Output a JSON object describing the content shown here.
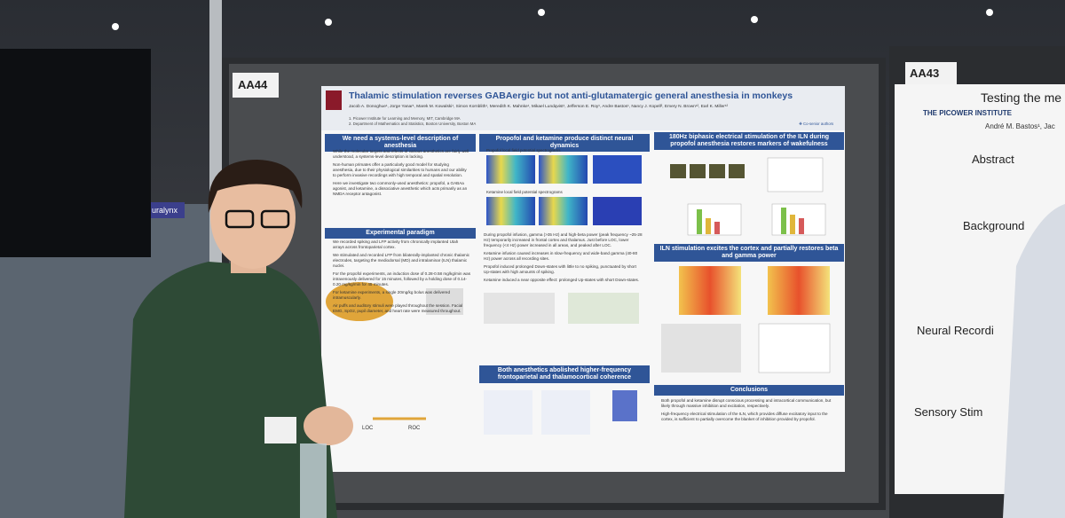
{
  "booth_labels": [
    "AA44",
    "AA43"
  ],
  "sign": "uralynx",
  "poster": {
    "title": "Thalamic stimulation reverses GABAergic but not anti-glutamatergic general anesthesia in monkeys",
    "authors": "Jacob A. Donoghue¹, Jorge Yanar¹, Marek M. Kowalski¹, Simon Kornblith¹, Meredith K. Mahnke¹, Mikael Lundqvist¹, Jefferson E. Roy¹, Andre Bastos¹, Nancy J. Kopell², Emery N. Brown¹², Earl K. Miller¹²",
    "affiliations": [
      "1. Picower Institute for Learning and Memory, MIT, Cambridge MA",
      "2. Department of Mathematics and Statistics, Boston University, Boston MA"
    ],
    "coauthors_note": "❖ Co-senior authors",
    "sections": [
      {
        "heading": "We need a systems-level description of anesthesia",
        "bullets": [
          "While the molecular targets and effects of various anesthetics are fairly well understood, a systems-level description is lacking.",
          "Non-human primates offer a particularly good model for studying anesthesia, due to their physiological similarities to humans and our ability to perform invasive recordings with high temporal and spatial resolution.",
          "Here we investigate two commonly-used anesthetics: propofol, a GABAa agonist, and ketamine, a dissociative anesthetic which acts primarily as an NMDA receptor antagonist."
        ]
      },
      {
        "heading": "Experimental paradigm",
        "bullets": [
          "We recorded spiking and LFP activity from chronically implanted Utah arrays across frontoparietal cortex.",
          "We stimulated and recorded LFP from bilaterally-implanted chronic thalamic electrodes, targeting the mediodorsal (MD) and intralaminar (ILN) thalamic nuclei.",
          "For the propofol experiments, an induction dose of 0.28-0.58 mg/kg/min was intravenously delivered for 15 minutes, followed by a holding dose of 0.14-0.20 mg/kg/min for 45 minutes.",
          "For ketamine experiments, a single 20mg/kg bolus was delivered intramuscularly.",
          "Air puffs and auditory stimuli were played throughout the session. Facial EMG, SpO2, pupil diameter, and heart rate were measured throughout."
        ]
      },
      {
        "heading": "Propofol and ketamine produce distinct neural dynamics",
        "bullets": [
          "During propofol infusion, gamma (>35 Hz) and high-beta power (peak frequency ~25-28 Hz) temporarily increased in frontal cortex and thalamus. Just before LOC, lower frequency (<4 Hz) power increased in all areas, and peaked after LOC.",
          "Ketamine infusion caused increases in slow-frequency and wide-band gamma (40-80 Hz) power across all recording sites.",
          "Propofol induced prolonged Down-states with little to no spiking, punctuated by short Up-states with high amounts of spiking.",
          "Ketamine induced a near opposite effect: prolonged Up-states with short Down-states."
        ]
      },
      {
        "heading": "Both anesthetics abolished higher-frequency frontoparietal and thalamocortical coherence",
        "bullets": []
      },
      {
        "heading": "180Hz biphasic electrical stimulation of the ILN during propofol anesthesia restores markers of wakefulness",
        "bullets": []
      },
      {
        "heading": "ILN stimulation excites the cortex and partially restores beta and gamma power",
        "bullets": []
      },
      {
        "heading": "Conclusions",
        "bullets": [
          "Both propofol and ketamine disrupt conscious processing and intracortical communication, but likely through massive inhibition and excitation, respectively.",
          "High-frequency electrical stimulation of the ILN, which provides diffuse excitatory input to the cortex, is sufficient to partially overcome the blanket of inhibition provided by propofol."
        ]
      }
    ],
    "figure_labels": [
      "Propofol local field potential spectrograms",
      "Ketamine local field potential spectrograms",
      "LOC",
      "ROC"
    ]
  },
  "neighbor_poster": {
    "institute": "THE PICOWER INSTITUTE",
    "title": "Testing the me",
    "author": "André M. Bastos¹, Jac",
    "headings": [
      "Abstract",
      "Background",
      "Neural Recordi",
      "Sensory Stim"
    ]
  }
}
